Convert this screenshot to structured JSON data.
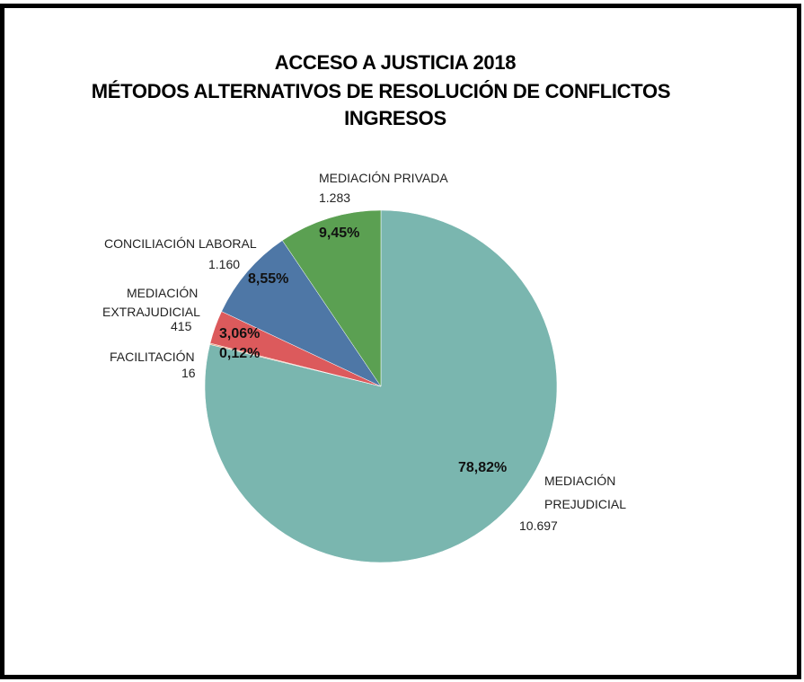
{
  "chart_data": {
    "type": "pie",
    "title": "ACCESO A JUSTICIA 2018",
    "subtitle": "MÉTODOS ALTERNATIVOS DE RESOLUCIÓN DE CONFLICTOS",
    "subtitle2": "INGRESOS",
    "categories": [
      "MEDIACIÓN PREJUDICIAL",
      "FACILITACIÓN",
      "MEDIACIÓN EXTRAJUDICIAL",
      "CONCILIACIÓN LABORAL",
      "MEDIACIÓN PRIVADA"
    ],
    "values": [
      10697,
      16,
      415,
      1160,
      1283
    ],
    "percentages": [
      "78,82%",
      "0,12%",
      "3,06%",
      "8,55%",
      "9,45%"
    ],
    "value_labels": [
      "10.697",
      "16",
      "415",
      "1.160",
      "1.283"
    ],
    "colors": [
      "#7ab6af",
      "#e8a07a",
      "#dc5a5c",
      "#4e77a6",
      "#5ba052"
    ],
    "legend": "none (data labels)"
  },
  "title": {
    "line1": "ACCESO A JUSTICIA 2018",
    "line2": "MÉTODOS ALTERNATIVOS DE RESOLUCIÓN DE CONFLICTOS",
    "line3": "INGRESOS"
  },
  "labels": {
    "privada": {
      "name": "MEDIACIÓN PRIVADA",
      "value": "1.283",
      "pct": "9,45%"
    },
    "laboral": {
      "name": "CONCILIACIÓN LABORAL",
      "value": "1.160",
      "pct": "8,55%"
    },
    "extrajudicial": {
      "name1": "MEDIACIÓN",
      "name2": "EXTRAJUDICIAL",
      "value": "415",
      "pct": "3,06%"
    },
    "facilitacion": {
      "name": "FACILITACIÓN",
      "value": "16",
      "pct": "0,12%"
    },
    "prejudicial": {
      "name1": "MEDIACIÓN",
      "name2": "PREJUDICIAL",
      "value": "10.697",
      "pct": "78,82%"
    }
  }
}
